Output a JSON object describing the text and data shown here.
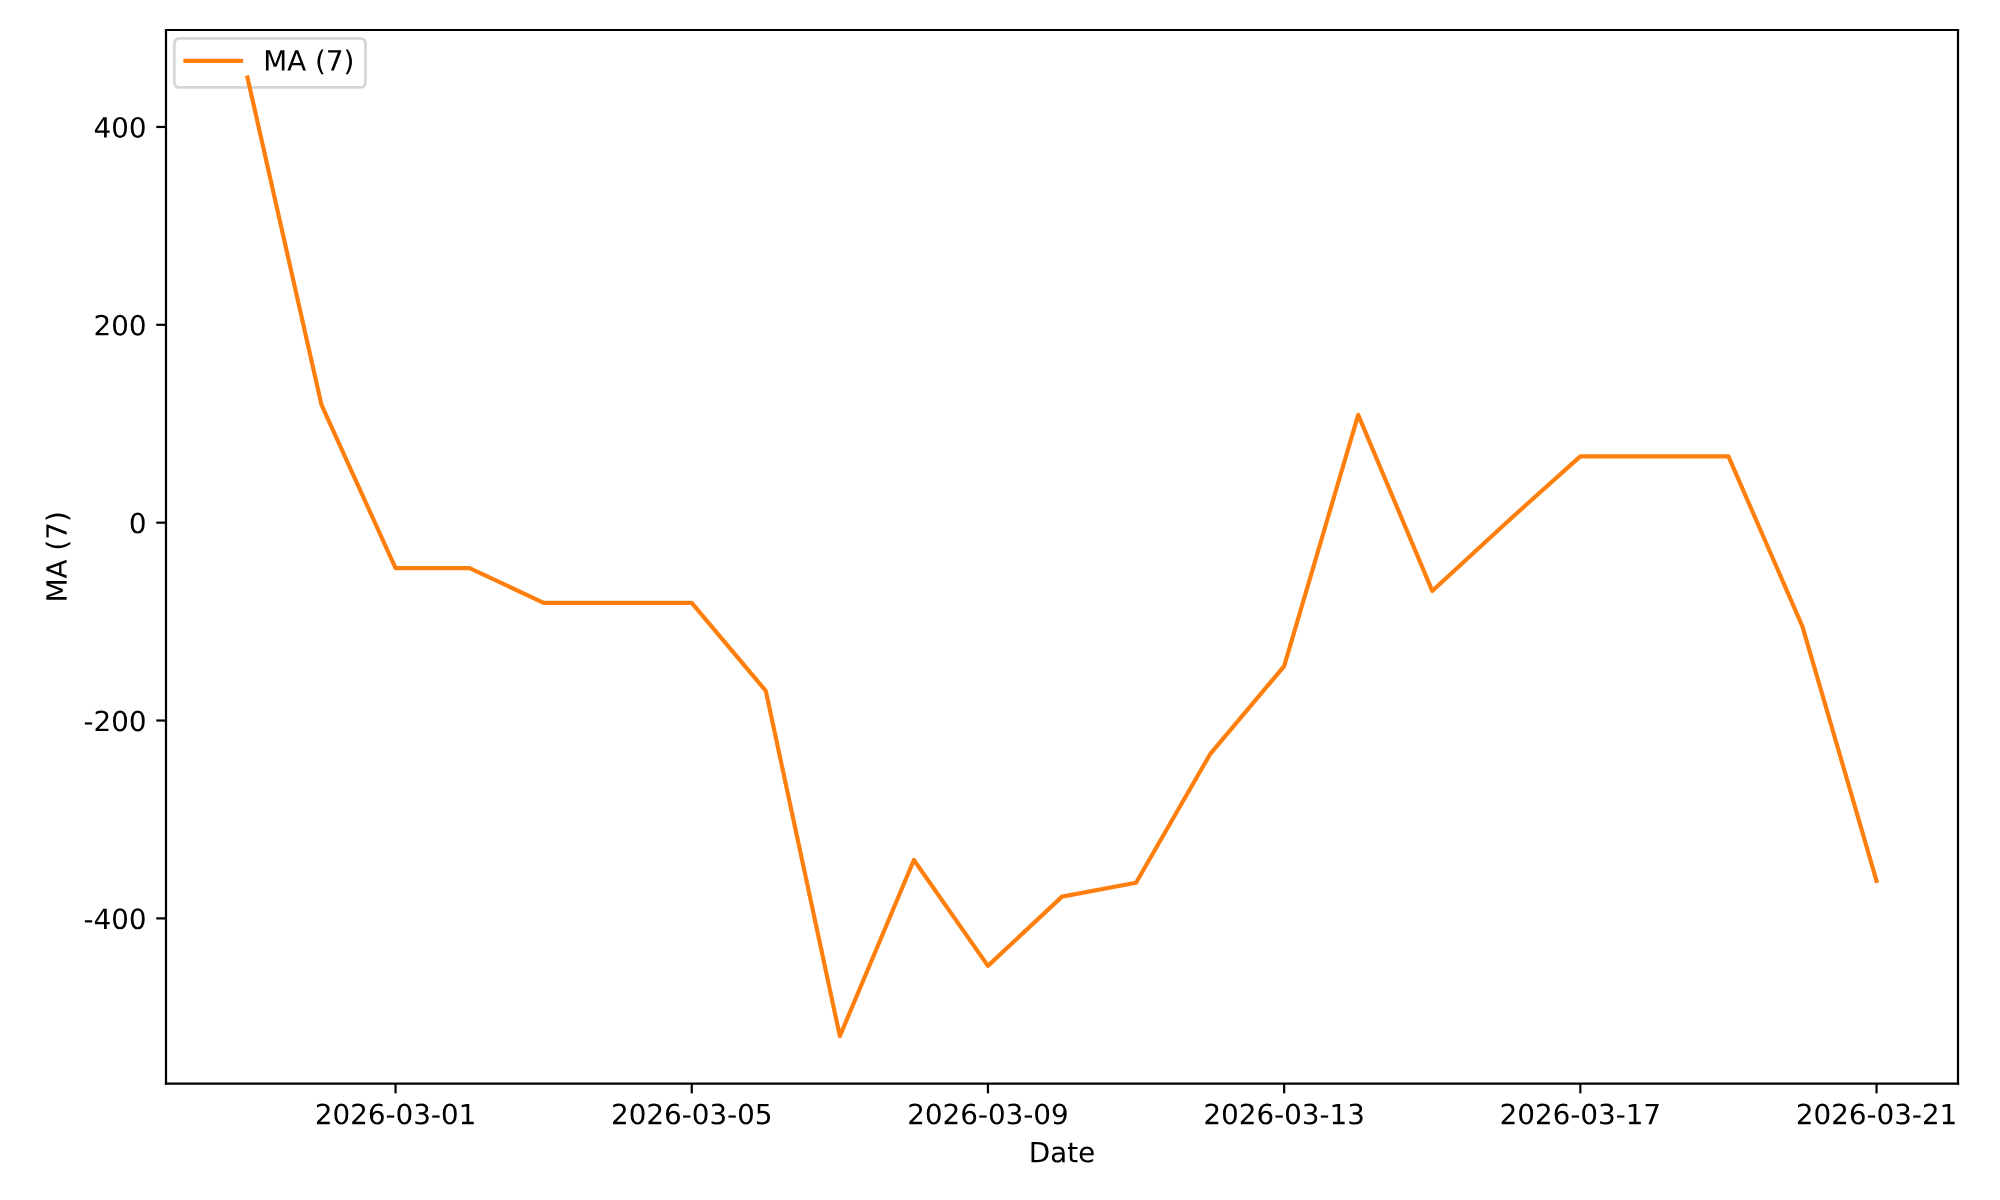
{
  "chart_data": {
    "type": "line",
    "xlabel": "Date",
    "ylabel": "MA (7)",
    "x": [
      "2026-02-27",
      "2026-02-28",
      "2026-03-01",
      "2026-03-02",
      "2026-03-03",
      "2026-03-04",
      "2026-03-05",
      "2026-03-06",
      "2026-03-07",
      "2026-03-08",
      "2026-03-09",
      "2026-03-10",
      "2026-03-11",
      "2026-03-12",
      "2026-03-13",
      "2026-03-14",
      "2026-03-15",
      "2026-03-16",
      "2026-03-17",
      "2026-03-18",
      "2026-03-19",
      "2026-03-20",
      "2026-03-21"
    ],
    "series": [
      {
        "name": "MA (7)",
        "color": "#ff7f0e",
        "values": [
          450,
          119,
          -46,
          -46,
          -81,
          -81,
          -81,
          -170,
          -519,
          -341,
          -448,
          -378,
          -364,
          -234,
          -145,
          109,
          -69,
          0,
          67,
          67,
          67,
          -105,
          -362
        ]
      }
    ],
    "xlim": [
      "2026-02-25T21:36",
      "2026-03-22T02:24"
    ],
    "xticks": [
      "2026-03-01",
      "2026-03-05",
      "2026-03-09",
      "2026-03-13",
      "2026-03-17",
      "2026-03-21"
    ],
    "ylim": [
      -567,
      498
    ],
    "yticks": [
      -400,
      -200,
      0,
      200,
      400
    ],
    "legend": "top left",
    "grid": false,
    "marker": "none",
    "line_style": "solid"
  }
}
